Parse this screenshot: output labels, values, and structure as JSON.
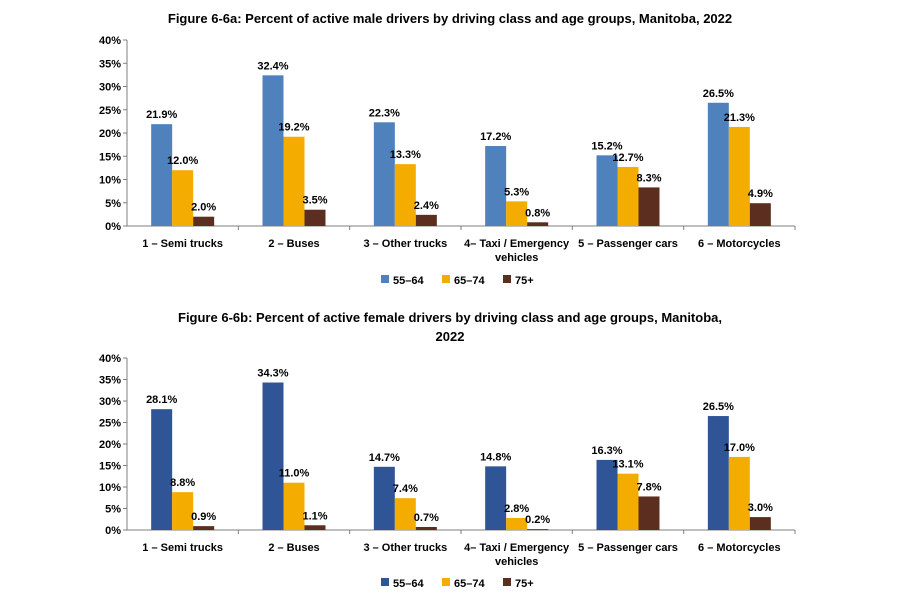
{
  "chart_data": [
    {
      "type": "bar",
      "title": "Figure 6-6a: Percent of active male drivers by driving class and age groups, Manitoba, 2022",
      "title_lines": [
        "Figure 6-6a: Percent of active male drivers by driving class and age groups, Manitoba, 2022"
      ],
      "categories": [
        "1 – Semi trucks",
        "2 – Buses",
        "3 – Other trucks",
        "4– Taxi / Emergency vehicles",
        "5 – Passenger cars",
        "6 – Motorcycles"
      ],
      "category_lines": [
        [
          "1 – Semi trucks"
        ],
        [
          "2 – Buses"
        ],
        [
          "3 – Other trucks"
        ],
        [
          "4– Taxi / Emergency",
          "vehicles"
        ],
        [
          "5 – Passenger cars"
        ],
        [
          "6 – Motorcycles"
        ]
      ],
      "series": [
        {
          "name": "55–64",
          "color": "#4F81BD",
          "values": [
            21.9,
            32.4,
            22.3,
            17.2,
            15.2,
            26.5
          ],
          "labels": [
            "21.9%",
            "32.4%",
            "22.3%",
            "17.2%",
            "15.2%",
            "26.5%"
          ]
        },
        {
          "name": "65–74",
          "color": "#F4AC00",
          "values": [
            12.0,
            19.2,
            13.3,
            5.3,
            12.7,
            21.3
          ],
          "labels": [
            "12.0%",
            "19.2%",
            "13.3%",
            "5.3%",
            "12.7%",
            "21.3%"
          ]
        },
        {
          "name": "75+",
          "color": "#5C2E1F",
          "values": [
            2.0,
            3.5,
            2.4,
            0.8,
            8.3,
            4.9
          ],
          "labels": [
            "2.0%",
            "3.5%",
            "2.4%",
            "0.8%",
            "8.3%",
            "4.9%"
          ]
        }
      ],
      "ylim": [
        0,
        40
      ],
      "yticks": [
        "0%",
        "5%",
        "10%",
        "15%",
        "20%",
        "25%",
        "30%",
        "35%",
        "40%"
      ],
      "xlabel": "",
      "ylabel": "",
      "grid": false,
      "legend": "bottom-center"
    },
    {
      "type": "bar",
      "title": "Figure 6-6b: Percent of active female drivers by driving class and age groups, Manitoba, 2022",
      "title_lines": [
        "Figure 6-6b: Percent of active female drivers by driving class and age groups, Manitoba,",
        "2022"
      ],
      "categories": [
        "1 – Semi trucks",
        "2 – Buses",
        "3 – Other trucks",
        "4– Taxi / Emergency vehicles",
        "5 – Passenger cars",
        "6 – Motorcycles"
      ],
      "category_lines": [
        [
          "1 – Semi trucks"
        ],
        [
          "2 – Buses"
        ],
        [
          "3 – Other trucks"
        ],
        [
          "4– Taxi / Emergency",
          "vehicles"
        ],
        [
          "5 – Passenger cars"
        ],
        [
          "6 – Motorcycles"
        ]
      ],
      "series": [
        {
          "name": "55–64",
          "color": "#2F5597",
          "values": [
            28.1,
            34.3,
            14.7,
            14.8,
            16.3,
            26.5
          ],
          "labels": [
            "28.1%",
            "34.3%",
            "14.7%",
            "14.8%",
            "16.3%",
            "26.5%"
          ]
        },
        {
          "name": "65–74",
          "color": "#F4AC00",
          "values": [
            8.8,
            11.0,
            7.4,
            2.8,
            13.1,
            17.0
          ],
          "labels": [
            "8.8%",
            "11.0%",
            "7.4%",
            "2.8%",
            "13.1%",
            "17.0%"
          ]
        },
        {
          "name": "75+",
          "color": "#5C2E1F",
          "values": [
            0.9,
            1.1,
            0.7,
            0.2,
            7.8,
            3.0
          ],
          "labels": [
            "0.9%",
            "1.1%",
            "0.7%",
            "0.2%",
            "7.8%",
            "3.0%"
          ]
        }
      ],
      "ylim": [
        0,
        40
      ],
      "yticks": [
        "0%",
        "5%",
        "10%",
        "15%",
        "20%",
        "25%",
        "30%",
        "35%",
        "40%"
      ],
      "xlabel": "",
      "ylabel": "",
      "grid": false,
      "legend": "bottom-center"
    }
  ]
}
